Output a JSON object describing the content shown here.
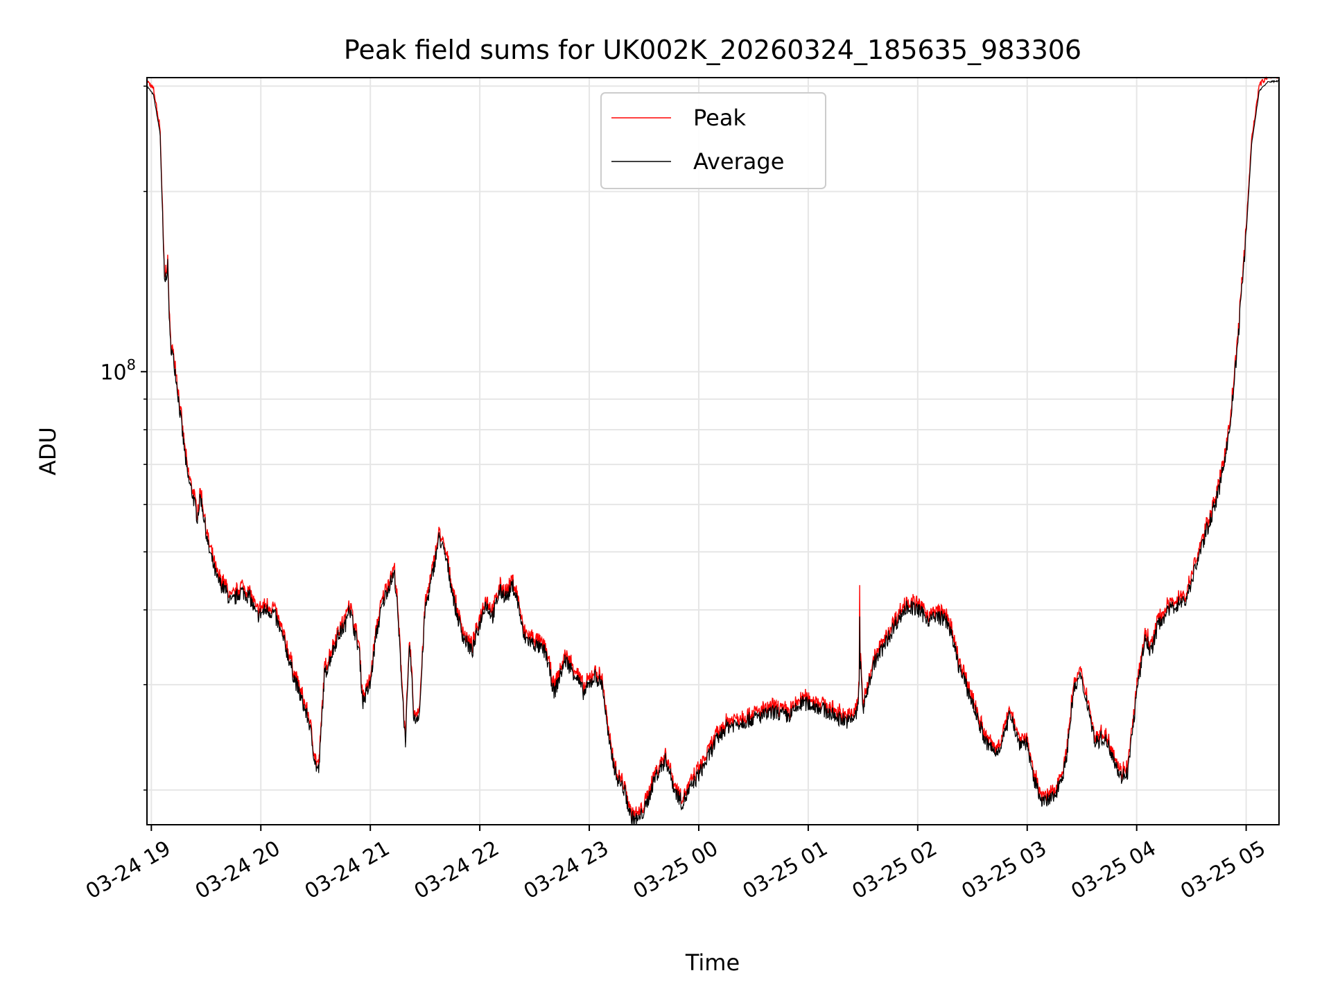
{
  "chart_data": {
    "type": "line",
    "title": "Peak field sums for UK002K_20260324_185635_983306",
    "xlabel": "Time",
    "ylabel": "ADU",
    "yscale": "log",
    "ylim": [
      17500000,
      310000000
    ],
    "xlim_hours": [
      18.96,
      29.3
    ],
    "grid": "both",
    "legend_loc": "upper center",
    "colors": {
      "peak": "#ff0000",
      "average": "#000000",
      "grid": "#e6e6e6"
    },
    "x_ticks": [
      {
        "hour": 19,
        "label": "03-24 19"
      },
      {
        "hour": 20,
        "label": "03-24 20"
      },
      {
        "hour": 21,
        "label": "03-24 21"
      },
      {
        "hour": 22,
        "label": "03-24 22"
      },
      {
        "hour": 23,
        "label": "03-24 23"
      },
      {
        "hour": 24,
        "label": "03-25 00"
      },
      {
        "hour": 25,
        "label": "03-25 01"
      },
      {
        "hour": 26,
        "label": "03-25 02"
      },
      {
        "hour": 27,
        "label": "03-25 03"
      },
      {
        "hour": 28,
        "label": "03-25 04"
      },
      {
        "hour": 29,
        "label": "03-25 05"
      }
    ],
    "y_major_ticks": [
      {
        "value": 100000000,
        "label_base": "10",
        "label_exp": "8"
      }
    ],
    "y_minor_ticks": [
      20000000,
      30000000,
      40000000,
      50000000,
      60000000,
      70000000,
      80000000,
      90000000,
      200000000,
      300000000
    ],
    "series": [
      {
        "name": "Peak",
        "key": "peak",
        "color": "#ff0000"
      },
      {
        "name": "Average",
        "key": "average",
        "color": "#000000"
      }
    ],
    "anchors_hours_value": [
      [
        18.96,
        300000000
      ],
      [
        19.02,
        290000000
      ],
      [
        19.08,
        250000000
      ],
      [
        19.12,
        140000000
      ],
      [
        19.15,
        150000000
      ],
      [
        19.17,
        113000000
      ],
      [
        19.22,
        100000000
      ],
      [
        19.28,
        80000000
      ],
      [
        19.33,
        67000000
      ],
      [
        19.38,
        62000000
      ],
      [
        19.42,
        57000000
      ],
      [
        19.45,
        62000000
      ],
      [
        19.52,
        51000000
      ],
      [
        19.6,
        45000000
      ],
      [
        19.68,
        43000000
      ],
      [
        19.73,
        41000000
      ],
      [
        19.82,
        43000000
      ],
      [
        19.9,
        42000000
      ],
      [
        19.96,
        39000000
      ],
      [
        20.05,
        40000000
      ],
      [
        20.12,
        39500000
      ],
      [
        20.22,
        35000000
      ],
      [
        20.3,
        31000000
      ],
      [
        20.38,
        28000000
      ],
      [
        20.44,
        26000000
      ],
      [
        20.5,
        22000000
      ],
      [
        20.53,
        21500000
      ],
      [
        20.58,
        31000000
      ],
      [
        20.63,
        33000000
      ],
      [
        20.7,
        36000000
      ],
      [
        20.78,
        38000000
      ],
      [
        20.8,
        41000000
      ],
      [
        20.9,
        34000000
      ],
      [
        20.93,
        28000000
      ],
      [
        21.0,
        30000000
      ],
      [
        21.05,
        36000000
      ],
      [
        21.1,
        40000000
      ],
      [
        21.15,
        43000000
      ],
      [
        21.22,
        46000000
      ],
      [
        21.24,
        42000000
      ],
      [
        21.28,
        32000000
      ],
      [
        21.32,
        24000000
      ],
      [
        21.36,
        35000000
      ],
      [
        21.4,
        26000000
      ],
      [
        21.45,
        27000000
      ],
      [
        21.5,
        40000000
      ],
      [
        21.55,
        44000000
      ],
      [
        21.63,
        53000000
      ],
      [
        21.7,
        48000000
      ],
      [
        21.78,
        40000000
      ],
      [
        21.85,
        36000000
      ],
      [
        21.93,
        34000000
      ],
      [
        22.0,
        38000000
      ],
      [
        22.05,
        41000000
      ],
      [
        22.12,
        39000000
      ],
      [
        22.18,
        43000000
      ],
      [
        22.25,
        42000000
      ],
      [
        22.3,
        44000000
      ],
      [
        22.35,
        41000000
      ],
      [
        22.4,
        36000000
      ],
      [
        22.5,
        35000000
      ],
      [
        22.6,
        34000000
      ],
      [
        22.68,
        29000000
      ],
      [
        22.78,
        33000000
      ],
      [
        22.88,
        31000000
      ],
      [
        22.95,
        29000000
      ],
      [
        23.05,
        31000000
      ],
      [
        23.12,
        30000000
      ],
      [
        23.18,
        24000000
      ],
      [
        23.25,
        21000000
      ],
      [
        23.32,
        20000000
      ],
      [
        23.38,
        18000000
      ],
      [
        23.45,
        17800000
      ],
      [
        23.52,
        18800000
      ],
      [
        23.6,
        21000000
      ],
      [
        23.7,
        22500000
      ],
      [
        23.78,
        20000000
      ],
      [
        23.85,
        19000000
      ],
      [
        23.95,
        20500000
      ],
      [
        24.05,
        22000000
      ],
      [
        24.15,
        24000000
      ],
      [
        24.25,
        25500000
      ],
      [
        24.4,
        26000000
      ],
      [
        24.55,
        26500000
      ],
      [
        24.7,
        27000000
      ],
      [
        24.82,
        26500000
      ],
      [
        24.95,
        28000000
      ],
      [
        25.1,
        27500000
      ],
      [
        25.25,
        26500000
      ],
      [
        25.38,
        26000000
      ],
      [
        25.45,
        27000000
      ],
      [
        25.48,
        33000000
      ],
      [
        25.5,
        27000000
      ],
      [
        25.55,
        30000000
      ],
      [
        25.6,
        32500000
      ],
      [
        25.7,
        35000000
      ],
      [
        25.8,
        38000000
      ],
      [
        25.9,
        40500000
      ],
      [
        26.0,
        40000000
      ],
      [
        26.1,
        38500000
      ],
      [
        26.2,
        39000000
      ],
      [
        26.28,
        38000000
      ],
      [
        26.38,
        32000000
      ],
      [
        26.5,
        28000000
      ],
      [
        26.62,
        24000000
      ],
      [
        26.72,
        23000000
      ],
      [
        26.8,
        25000000
      ],
      [
        26.85,
        27000000
      ],
      [
        26.92,
        24000000
      ],
      [
        27.0,
        24000000
      ],
      [
        27.05,
        21000000
      ],
      [
        27.15,
        19000000
      ],
      [
        27.25,
        19500000
      ],
      [
        27.35,
        22000000
      ],
      [
        27.42,
        29000000
      ],
      [
        27.48,
        31000000
      ],
      [
        27.55,
        28000000
      ],
      [
        27.62,
        24000000
      ],
      [
        27.7,
        24500000
      ],
      [
        27.78,
        23000000
      ],
      [
        27.85,
        21000000
      ],
      [
        27.92,
        21500000
      ],
      [
        28.0,
        29000000
      ],
      [
        28.08,
        36000000
      ],
      [
        28.13,
        34000000
      ],
      [
        28.2,
        38000000
      ],
      [
        28.3,
        40000000
      ],
      [
        28.38,
        41000000
      ],
      [
        28.45,
        41500000
      ],
      [
        28.55,
        48000000
      ],
      [
        28.65,
        55000000
      ],
      [
        28.75,
        63000000
      ],
      [
        28.85,
        80000000
      ],
      [
        28.92,
        110000000
      ],
      [
        29.0,
        170000000
      ],
      [
        29.05,
        240000000
      ],
      [
        29.12,
        295000000
      ],
      [
        29.2,
        305000000
      ],
      [
        29.3,
        306000000
      ]
    ],
    "spike": {
      "hour": 25.47,
      "peak": 44000000,
      "average": 39000000
    }
  }
}
